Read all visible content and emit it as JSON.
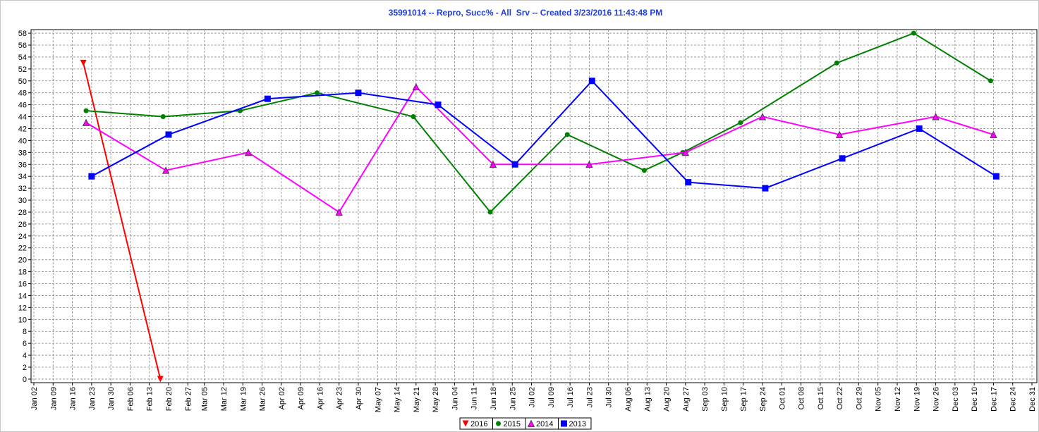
{
  "chart_data": {
    "type": "line",
    "title": "35991014 -- Repro, Succ% - All  Srv -- Created 3/23/2016 11:43:48 PM",
    "xlim": [
      "Jan 02",
      "Dec 31"
    ],
    "xticks": [
      "Jan 02",
      "Jan 09",
      "Jan 16",
      "Jan 23",
      "Jan 30",
      "Feb 06",
      "Feb 13",
      "Feb 20",
      "Feb 27",
      "Mar 05",
      "Mar 12",
      "Mar 19",
      "Mar 26",
      "Apr 02",
      "Apr 09",
      "Apr 16",
      "Apr 23",
      "Apr 30",
      "May 07",
      "May 14",
      "May 21",
      "May 28",
      "Jun 04",
      "Jun 11",
      "Jun 18",
      "Jun 25",
      "Jul 02",
      "Jul 09",
      "Jul 16",
      "Jul 23",
      "Jul 30",
      "Aug 06",
      "Aug 13",
      "Aug 20",
      "Aug 27",
      "Sep 03",
      "Sep 10",
      "Sep 17",
      "Sep 24",
      "Oct 01",
      "Oct 08",
      "Oct 15",
      "Oct 22",
      "Oct 29",
      "Nov 05",
      "Nov 12",
      "Nov 19",
      "Nov 26",
      "Dec 03",
      "Dec 10",
      "Dec 17",
      "Dec 24",
      "Dec 31"
    ],
    "ylim": [
      -0.6,
      58.6
    ],
    "yticks": [
      0,
      2,
      4,
      6,
      8,
      10,
      12,
      14,
      16,
      18,
      20,
      22,
      24,
      26,
      28,
      30,
      32,
      34,
      36,
      38,
      40,
      42,
      44,
      46,
      48,
      50,
      52,
      54,
      56,
      58
    ],
    "grid": true,
    "legend": "bottom",
    "series": [
      {
        "name": "2016",
        "color": "#ff0000",
        "marker": "triangle-down",
        "x": [
          "Jan 20",
          "Feb 17"
        ],
        "values": [
          53,
          0
        ]
      },
      {
        "name": "2015",
        "color": "#008000",
        "marker": "circle",
        "x": [
          "Jan 21",
          "Feb 18",
          "Mar 18",
          "Apr 15",
          "May 20",
          "Jun 17",
          "Jul 15",
          "Aug 12",
          "Aug 26",
          "Sep 16",
          "Oct 21",
          "Nov 18",
          "Dec 16"
        ],
        "values": [
          45,
          44,
          45,
          48,
          44,
          28,
          41,
          35,
          38,
          43,
          53,
          58,
          50
        ]
      },
      {
        "name": "2014",
        "color": "#ff00ff",
        "marker": "triangle-up",
        "x": [
          "Jan 21",
          "Feb 19",
          "Mar 21",
          "Apr 23",
          "May 21",
          "Jun 18",
          "Jul 23",
          "Aug 27",
          "Sep 24",
          "Oct 22",
          "Nov 26",
          "Dec 17"
        ],
        "values": [
          43,
          35,
          38,
          28,
          49,
          36,
          36,
          38,
          44,
          41,
          44,
          41
        ]
      },
      {
        "name": "2013",
        "color": "#0000ff",
        "marker": "square",
        "x": [
          "Jan 23",
          "Feb 20",
          "Mar 28",
          "Apr 30",
          "May 29",
          "Jun 26",
          "Jul 24",
          "Aug 28",
          "Sep 25",
          "Oct 23",
          "Nov 20",
          "Dec 18"
        ],
        "values": [
          34,
          41,
          47,
          48,
          46,
          36,
          50,
          33,
          32,
          37,
          42,
          34
        ]
      }
    ]
  }
}
